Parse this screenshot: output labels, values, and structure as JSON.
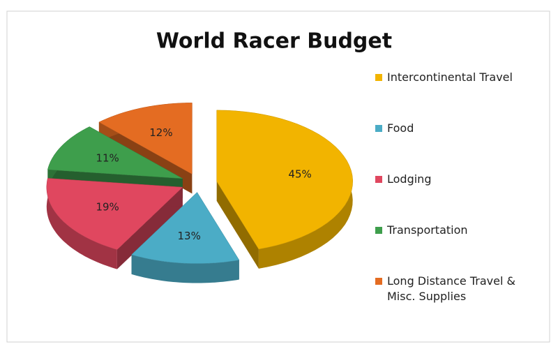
{
  "chart_data": {
    "type": "pie",
    "title": "World Racer Budget",
    "categories": [
      "Intercontinental Travel",
      "Food",
      "Lodging",
      "Transportation",
      "Long Distance Travel & Misc. Supplies"
    ],
    "values": [
      45,
      13,
      19,
      11,
      12
    ],
    "value_labels": [
      "45%",
      "13%",
      "19%",
      "11%",
      "12%"
    ],
    "colors": [
      "#f2b400",
      "#4bacc6",
      "#e0475f",
      "#3e9e4c",
      "#e46c22"
    ],
    "legend": "right"
  }
}
